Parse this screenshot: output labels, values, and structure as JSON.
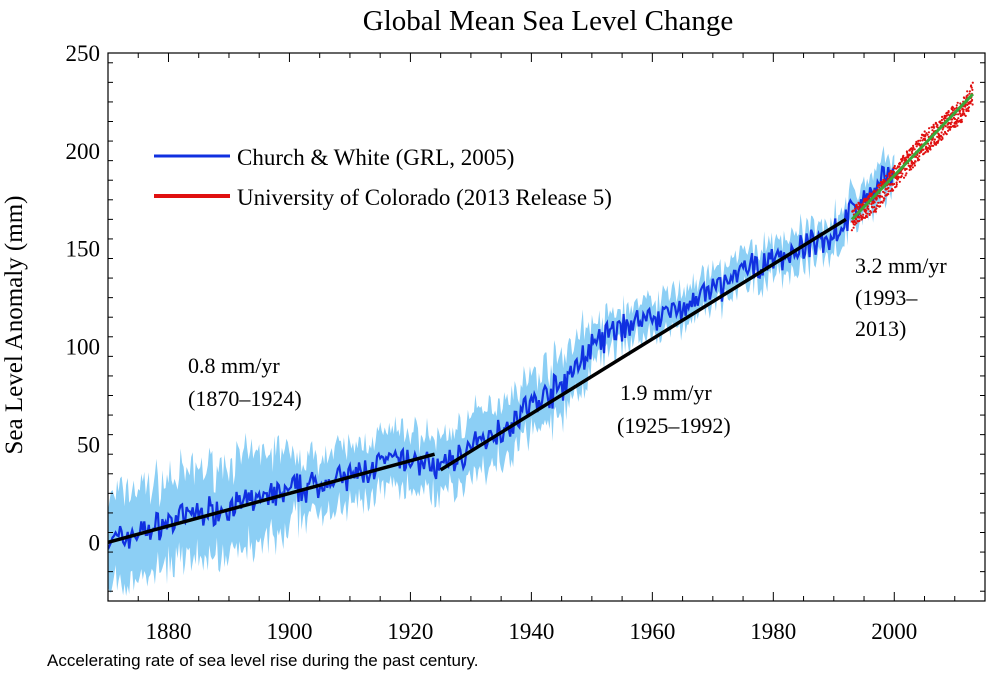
{
  "chart_data": {
    "type": "line",
    "title": "Global Mean Sea Level Change",
    "xlabel": "",
    "ylabel": "Sea Level Anomaly (mm)",
    "xlim": [
      1870,
      2015
    ],
    "ylim": [
      -30,
      250
    ],
    "x_ticks": [
      1880,
      1900,
      1920,
      1940,
      1960,
      1980,
      2000
    ],
    "y_ticks": [
      0,
      50,
      100,
      150,
      200,
      250
    ],
    "grid": false,
    "legend_position": "upper-left",
    "colors": {
      "church_white": "#1030e0",
      "uncertainty_band": "#8ccff5",
      "colorado": "#e01010",
      "colorado_fit": "#39a83a",
      "trend": "#000000"
    },
    "series": [
      {
        "name": "Church & White (GRL, 2005)",
        "x": [
          1870,
          1875,
          1880,
          1885,
          1890,
          1895,
          1900,
          1905,
          1910,
          1915,
          1920,
          1925,
          1930,
          1935,
          1940,
          1945,
          1950,
          1955,
          1960,
          1965,
          1970,
          1975,
          1980,
          1985,
          1990,
          1995,
          2000
        ],
        "y": [
          0,
          5,
          10,
          15,
          18,
          22,
          26,
          30,
          33,
          40,
          42,
          38,
          48,
          58,
          70,
          80,
          100,
          110,
          115,
          120,
          128,
          138,
          145,
          150,
          158,
          175,
          190
        ],
        "band": 15
      },
      {
        "name": "University of Colorado (2013 Release 5)",
        "x": [
          1993,
          1995,
          1997,
          1999,
          2001,
          2003,
          2005,
          2007,
          2009,
          2011,
          2013
        ],
        "y": [
          165,
          170,
          175,
          183,
          190,
          197,
          204,
          209,
          215,
          220,
          229
        ]
      }
    ],
    "trend_lines": [
      {
        "label": "0.8 mm/yr",
        "period": "(1870–1924)",
        "x": [
          1870,
          1924
        ],
        "y": [
          0,
          45
        ]
      },
      {
        "label": "1.9 mm/yr",
        "period": "(1925–1992)",
        "x": [
          1925,
          1992
        ],
        "y": [
          37,
          165
        ]
      },
      {
        "label": "3.2 mm/yr",
        "period_line1": "(1993–",
        "period_line2": "2013)",
        "x": [
          1993,
          2013
        ],
        "y": [
          165,
          229
        ]
      }
    ]
  },
  "caption": "Accelerating rate of sea level rise during the past century."
}
